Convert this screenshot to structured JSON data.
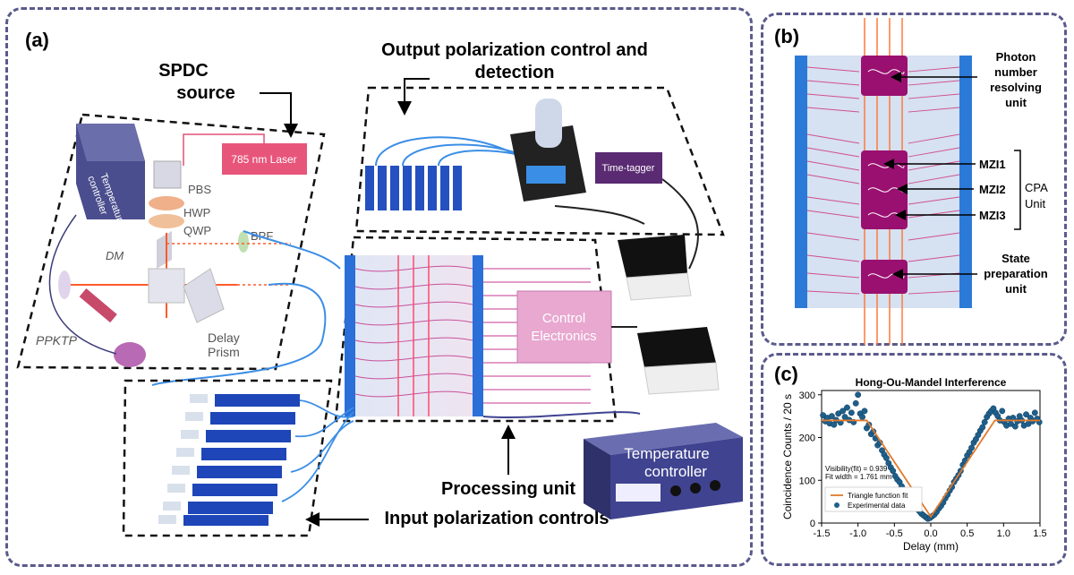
{
  "panel_a": {
    "letter": "(a)",
    "spdc_label": [
      "SPDC",
      "source"
    ],
    "output_label": [
      "Output polarization control and",
      "detection"
    ],
    "processing_label": "Processing unit",
    "input_label": "Input polarization controls",
    "temp_controller_small": [
      "Temperature",
      "controller"
    ],
    "laser": "785 nm Laser",
    "pbs": "PBS",
    "hwp": "HWP",
    "qwp": "QWP",
    "dm": "DM",
    "bpf": "BPF",
    "delay_prism": [
      "Delay",
      "Prism"
    ],
    "ppktp": "PPKTP",
    "time_tagger": "Time-tagger",
    "control_electronics": [
      "Control",
      "Electronics"
    ],
    "temp_controller_big": [
      "Temperature",
      "controller"
    ]
  },
  "panel_b": {
    "letter": "(b)",
    "photon_number": [
      "Photon",
      "number",
      "resolving",
      "unit"
    ],
    "mzi1": "MZI1",
    "mzi2": "MZI2",
    "mzi3": "MZI3",
    "cpa": [
      "CPA",
      "Unit"
    ],
    "state_prep": [
      "State",
      "preparation",
      "unit"
    ]
  },
  "panel_c": {
    "letter": "(c)"
  },
  "colors": {
    "frame": "#5a5a8c",
    "chip_blue": "#2b6fd8",
    "fiber": "#3b8ee6",
    "magenta": "#c0186a",
    "scatter": "#1f5f8b",
    "fit": "#e07a2b"
  },
  "chart_data": {
    "type": "scatter",
    "title": "Hong-Ou-Mandel Interference",
    "xlabel": "Delay (mm)",
    "ylabel": "Coincidence Counts / 20 s",
    "xlim": [
      -1.5,
      1.5
    ],
    "ylim": [
      0,
      310
    ],
    "xticks": [
      -1.5,
      -1.0,
      -0.5,
      0.0,
      0.5,
      1.0,
      1.5
    ],
    "yticks": [
      0,
      100,
      200,
      300
    ],
    "annotation": [
      "Visibility(fit) = 0.939",
      "Fit width = 1.761 mm"
    ],
    "legend": [
      "Triangle function fit",
      "Experimental data"
    ],
    "legend_position": "lower-left",
    "fit": {
      "x": [
        -1.5,
        -0.88,
        0.0,
        0.88,
        1.5
      ],
      "y": [
        240,
        240,
        15,
        240,
        240
      ]
    },
    "series": [
      {
        "kind": "points",
        "x": [
          -1.48,
          -1.45,
          -1.42,
          -1.39,
          -1.36,
          -1.33,
          -1.3,
          -1.27,
          -1.24,
          -1.21,
          -1.18,
          -1.15,
          -1.12,
          -1.09,
          -1.06,
          -1.03,
          -1.0,
          -0.97,
          -0.94,
          -0.91,
          -0.88,
          -0.85,
          -0.82,
          -0.79,
          -0.76,
          -0.73,
          -0.7,
          -0.67,
          -0.64,
          -0.61,
          -0.58,
          -0.55,
          -0.52,
          -0.49,
          -0.46,
          -0.43,
          -0.4,
          -0.37,
          -0.34,
          -0.31,
          -0.28,
          -0.25,
          -0.22,
          -0.19,
          -0.16,
          -0.13,
          -0.1,
          -0.07,
          -0.04,
          -0.01,
          0.02,
          0.05,
          0.08,
          0.11,
          0.14,
          0.17,
          0.2,
          0.23,
          0.26,
          0.29,
          0.32,
          0.35,
          0.38,
          0.41,
          0.44,
          0.47,
          0.5,
          0.53,
          0.56,
          0.59,
          0.62,
          0.65,
          0.68,
          0.71,
          0.74,
          0.77,
          0.8,
          0.83,
          0.86,
          0.89,
          0.92,
          0.95,
          0.98,
          1.01,
          1.04,
          1.07,
          1.1,
          1.13,
          1.16,
          1.19,
          1.22,
          1.25,
          1.28,
          1.31,
          1.34,
          1.37,
          1.4,
          1.43,
          1.46,
          1.49
        ],
        "y": [
          252,
          238,
          246,
          233,
          250,
          230,
          241,
          256,
          235,
          262,
          248,
          270,
          241,
          258,
          236,
          280,
          300,
          256,
          248,
          262,
          222,
          230,
          208,
          214,
          198,
          182,
          188,
          170,
          160,
          152,
          140,
          130,
          122,
          110,
          102,
          96,
          86,
          78,
          70,
          64,
          56,
          48,
          40,
          36,
          28,
          22,
          18,
          14,
          10,
          12,
          16,
          20,
          26,
          34,
          40,
          48,
          58,
          66,
          76,
          84,
          96,
          104,
          112,
          122,
          136,
          146,
          158,
          166,
          176,
          188,
          196,
          206,
          216,
          224,
          236,
          248,
          256,
          262,
          268,
          258,
          250,
          240,
          262,
          236,
          228,
          244,
          232,
          246,
          226,
          238,
          250,
          240,
          228,
          254,
          232,
          246,
          238,
          258,
          244,
          236
        ]
      }
    ]
  }
}
